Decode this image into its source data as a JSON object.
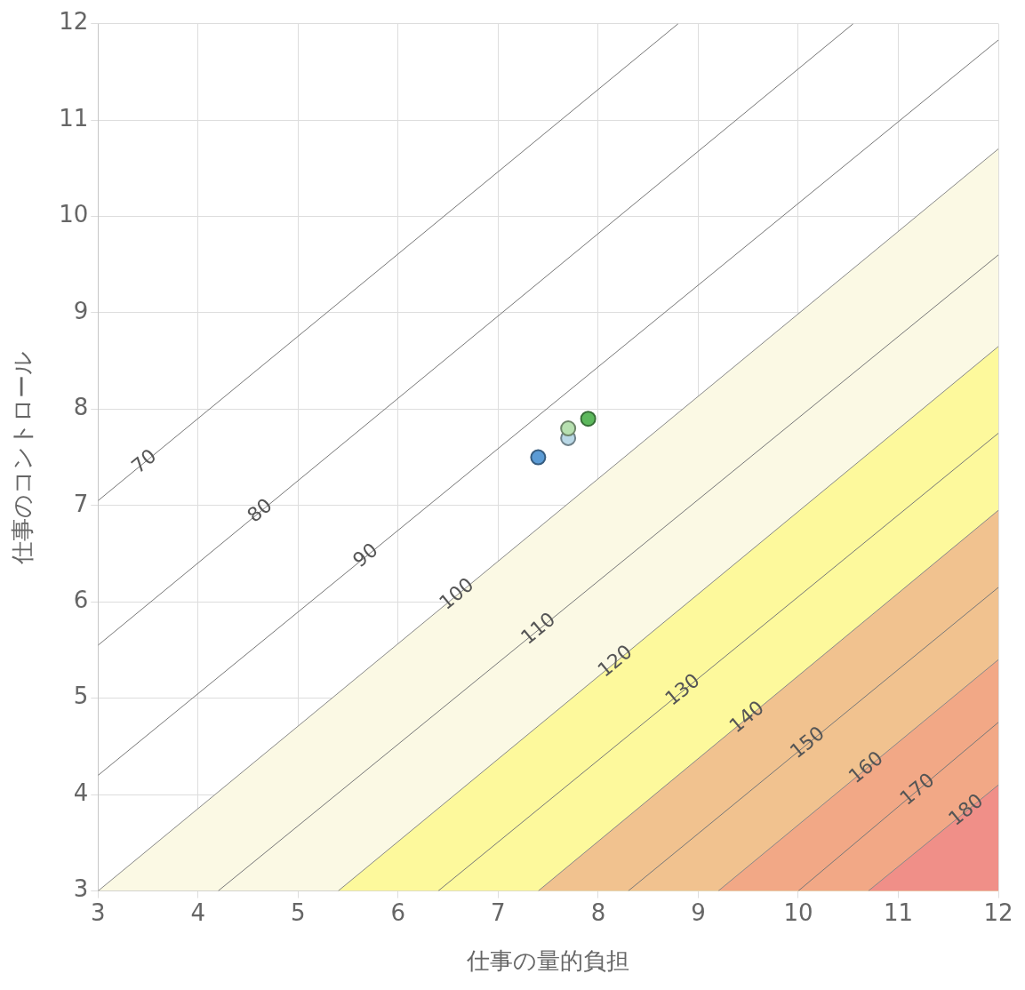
{
  "chart_data": {
    "type": "line",
    "xlabel": "仕事の量的負担",
    "ylabel": "仕事のコントロール",
    "xlim": [
      3,
      12
    ],
    "ylim": [
      3,
      12
    ],
    "xticks": [
      3,
      4,
      5,
      6,
      7,
      8,
      9,
      10,
      11,
      12
    ],
    "yticks": [
      3,
      4,
      5,
      6,
      7,
      8,
      9,
      10,
      11,
      12
    ],
    "grid": true,
    "legend": false,
    "series": [
      {
        "type": "area",
        "name": "100",
        "color": "#fbf9e4",
        "x": [
          3,
          12
        ],
        "values": [
          3,
          10.7
        ]
      },
      {
        "type": "area",
        "name": "120",
        "color": "#fdf99c",
        "x": [
          5.4,
          12
        ],
        "values": [
          3,
          8.65
        ]
      },
      {
        "type": "area",
        "name": "140",
        "color": "#f1c28f",
        "x": [
          7.4,
          12
        ],
        "values": [
          3,
          6.95
        ]
      },
      {
        "type": "area",
        "name": "160",
        "color": "#f2a886",
        "x": [
          9.2,
          12
        ],
        "values": [
          3,
          5.4
        ]
      },
      {
        "type": "area",
        "name": "180",
        "color": "#f08f88",
        "x": [
          10.7,
          12
        ],
        "values": [
          3,
          4.1
        ]
      },
      {
        "type": "line",
        "name": "70",
        "color": "#777777",
        "x": [
          3,
          8.8
        ],
        "values": [
          7.05,
          12
        ]
      },
      {
        "type": "line",
        "name": "80",
        "color": "#777777",
        "x": [
          3,
          10.55
        ],
        "values": [
          5.55,
          12
        ]
      },
      {
        "type": "line",
        "name": "90",
        "color": "#777777",
        "x": [
          3,
          12
        ],
        "values": [
          4.2,
          11.83
        ]
      },
      {
        "type": "line",
        "name": "110",
        "color": "#777777",
        "x": [
          4.2,
          12
        ],
        "values": [
          3,
          9.6
        ]
      },
      {
        "type": "line",
        "name": "130",
        "color": "#777777",
        "x": [
          6.4,
          12
        ],
        "values": [
          3,
          7.75
        ]
      },
      {
        "type": "line",
        "name": "150",
        "color": "#777777",
        "x": [
          8.3,
          12
        ],
        "values": [
          3,
          6.15
        ]
      },
      {
        "type": "line",
        "name": "170",
        "color": "#777777",
        "x": [
          10,
          12
        ],
        "values": [
          3,
          4.75
        ]
      },
      {
        "type": "scatter",
        "marker": "circle",
        "color": "#5b9bd5",
        "x": [
          7.4
        ],
        "values": [
          7.5
        ]
      },
      {
        "type": "scatter",
        "marker": "circle",
        "color": "#b7e0b0",
        "x": [
          7.7
        ],
        "values": [
          7.8
        ]
      },
      {
        "type": "scatter",
        "marker": "circle",
        "color": "#b9d8e6",
        "x": [
          7.7
        ],
        "values": [
          7.7
        ]
      },
      {
        "type": "scatter",
        "marker": "circle",
        "color": "#5cb85c",
        "x": [
          7.9
        ],
        "values": [
          7.9
        ]
      }
    ]
  }
}
